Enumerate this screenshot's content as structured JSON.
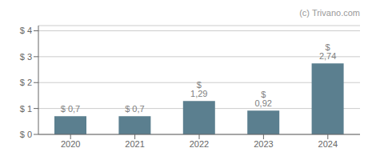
{
  "chart_data": {
    "type": "bar",
    "categories": [
      "2020",
      "2021",
      "2022",
      "2023",
      "2024"
    ],
    "values": [
      0.7,
      0.7,
      1.29,
      0.92,
      2.74
    ],
    "value_labels": [
      "$ 0,7",
      "$ 0,7",
      "$ 1,29",
      "$ 0,92",
      "$ 2,74"
    ],
    "data_labels": true,
    "color": "#5b7f8f",
    "ylim": [
      0,
      4.2
    ],
    "yticks": [
      {
        "value": 0,
        "label": "$ 0"
      },
      {
        "value": 1,
        "label": "$ 1"
      },
      {
        "value": 2,
        "label": "$ 2"
      },
      {
        "value": 3,
        "label": "$ 3"
      },
      {
        "value": 4,
        "label": "$ 4"
      }
    ],
    "grid": true,
    "annotations": [
      "(c) Trivano.com"
    ]
  }
}
